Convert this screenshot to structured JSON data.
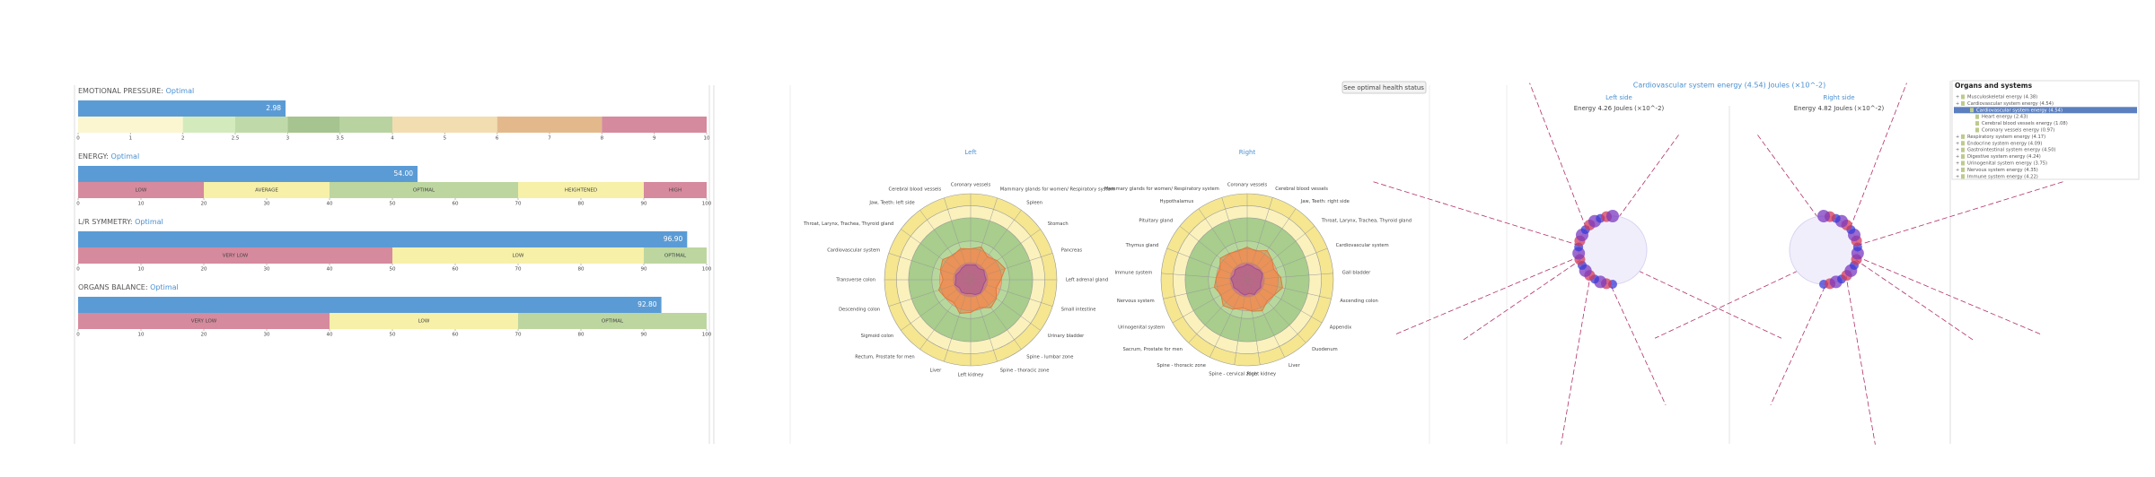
{
  "indicators": [
    {
      "title": "EMOTIONAL PRESSURE:",
      "status": "Optimal",
      "value": 2.98,
      "value_label": "2.98",
      "ticks": [
        0,
        1,
        2,
        2.5,
        3,
        3.5,
        4,
        5,
        6,
        7,
        8,
        9,
        10
      ],
      "segments": [
        {
          "from": 0,
          "to": 2,
          "color": "#fbf6d0"
        },
        {
          "from": 2,
          "to": 2.5,
          "color": "#d3eabd"
        },
        {
          "from": 2.5,
          "to": 3,
          "color": "#bfdaa8"
        },
        {
          "from": 3,
          "to": 3.5,
          "color": "#a6c48f"
        },
        {
          "from": 3.5,
          "to": 4,
          "color": "#b9d3a0"
        },
        {
          "from": 4,
          "to": 6,
          "color": "#f2ddb0"
        },
        {
          "from": 6,
          "to": 8,
          "color": "#e3b98c"
        },
        {
          "from": 8,
          "to": 10,
          "color": "#d68a9d"
        }
      ]
    },
    {
      "title": "ENERGY:",
      "status": "Optimal",
      "value": 54,
      "value_label": "54.00",
      "ticks": [
        0,
        10,
        20,
        30,
        40,
        50,
        60,
        70,
        80,
        90,
        100
      ],
      "segments": [
        {
          "from": 0,
          "to": 20,
          "color": "#d68a9d",
          "label": "LOW"
        },
        {
          "from": 20,
          "to": 40,
          "color": "#f6f0a8",
          "label": "AVERAGE"
        },
        {
          "from": 40,
          "to": 70,
          "color": "#bdd6a0",
          "label": "OPTIMAL"
        },
        {
          "from": 70,
          "to": 90,
          "color": "#f6f0a8",
          "label": "HEIGHTENED"
        },
        {
          "from": 90,
          "to": 100,
          "color": "#d68a9d",
          "label": "HIGH"
        }
      ]
    },
    {
      "title": "L/R SYMMETRY:",
      "status": "Optimal",
      "value": 96.9,
      "value_label": "96.90",
      "ticks": [
        0,
        10,
        20,
        30,
        40,
        50,
        60,
        70,
        80,
        90,
        100
      ],
      "segments": [
        {
          "from": 0,
          "to": 50,
          "color": "#d68a9d",
          "label": "VERY LOW"
        },
        {
          "from": 50,
          "to": 90,
          "color": "#f6f0a8",
          "label": "LOW"
        },
        {
          "from": 90,
          "to": 100,
          "color": "#bdd6a0",
          "label": "OPTIMAL"
        }
      ]
    },
    {
      "title": "ORGANS BALANCE:",
      "status": "Optimal",
      "value": 92.8,
      "value_label": "92.80",
      "ticks": [
        0,
        10,
        20,
        30,
        40,
        50,
        60,
        70,
        80,
        90,
        100
      ],
      "segments": [
        {
          "from": 0,
          "to": 40,
          "color": "#d68a9d",
          "label": "VERY LOW"
        },
        {
          "from": 40,
          "to": 70,
          "color": "#f6f0a8",
          "label": "LOW"
        },
        {
          "from": 70,
          "to": 100,
          "color": "#bdd6a0",
          "label": "OPTIMAL"
        }
      ]
    }
  ],
  "health_button": "See optimal health status",
  "radars": [
    {
      "title": "Left",
      "labels": [
        "Coronary vessels",
        "Mammary glands for women/ Respiratory system",
        "Spleen",
        "Stomach",
        "Pancreas",
        "Left adrenal gland",
        "Small intestine",
        "Urinary bladder",
        "Spine - lumbar zone",
        "Spine - thoracic zone",
        "Left kidney",
        "Liver",
        "Rectum, Prostate for men",
        "Sigmoid colon",
        "Descending colon",
        "Transverse colon",
        "Cardiovascular system",
        "Throat, Larynx, Trachea, Thyroid gland",
        "Jaw, Teeth: left side",
        "Cerebral blood vessels"
      ],
      "series": [
        {
          "color": "#e07a3a",
          "values": [
            36,
            40,
            33,
            38,
            42,
            35,
            31,
            37,
            40,
            34,
            38,
            41,
            33,
            36,
            39,
            32,
            37,
            40,
            35,
            38
          ]
        },
        {
          "color": "#9b4f96",
          "values": [
            17,
            18,
            16,
            19,
            17,
            18,
            16,
            17,
            19,
            18,
            16,
            17,
            18,
            16,
            19,
            17,
            18,
            16,
            17,
            18
          ]
        }
      ]
    },
    {
      "title": "Right",
      "labels": [
        "Coronary vessels",
        "Cerebral blood vessels",
        "Jaw, Teeth: right side",
        "Throat, Larynx, Trachea, Thyroid gland",
        "Cardiovascular system",
        "Gall bladder",
        "Ascending colon",
        "Appendix",
        "Duodenum",
        "Liver",
        "Right kidney",
        "Spine - cervical zone",
        "Spine - thoracic zone",
        "Sacrum, Prostate for men",
        "Urinogenital system",
        "Nervous system",
        "Immune system",
        "Thymus gland",
        "Pituitary gland",
        "Hypothalamus",
        "Mammary glands for women/ Respiratory system"
      ],
      "series": [
        {
          "color": "#e07a3a",
          "values": [
            38,
            35,
            41,
            37,
            33,
            39,
            42,
            36,
            34,
            40,
            37,
            33,
            38,
            41,
            35,
            39,
            36,
            34,
            40,
            37,
            35
          ]
        },
        {
          "color": "#9b4f96",
          "values": [
            18,
            17,
            16,
            18,
            19,
            17,
            16,
            18,
            17,
            19,
            16,
            18,
            17,
            16,
            18,
            17,
            19,
            16,
            18,
            17,
            16
          ]
        }
      ]
    }
  ],
  "energy": {
    "title": "Cardiovascular system energy (4.54) Joules (×10^-2)",
    "left_title": "Left side",
    "left_energy": "Energy 4.26 Joules (×10^-2)",
    "right_title": "Right side",
    "right_energy": "Energy 4.82 Joules (×10^-2)"
  },
  "tree": {
    "title": "Organs and systems",
    "items": [
      "Musculoskeletal energy (4.38)",
      "Cardiovascular system energy (4.54)",
      "Cardiovascular system energy (4.54)",
      "Heart energy (2.43)",
      "Cerebral blood vessels energy (1.08)",
      "Coronary vessels energy (0.97)",
      "Respiratory system energy (4.17)",
      "Endocrine system energy (4.09)",
      "Gastrointestinal system energy (4.50)",
      "Digestive system energy (4.24)",
      "Urinogenital system energy (3.75)",
      "Nervous system energy (4.35)",
      "Immune system energy (4.22)"
    ]
  }
}
